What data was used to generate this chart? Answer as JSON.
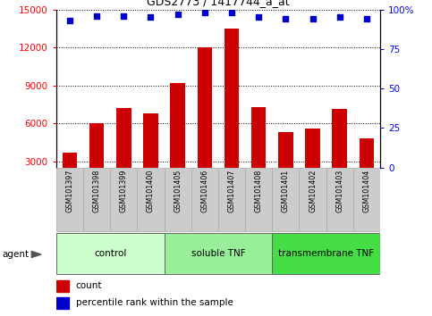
{
  "title": "GDS2773 / 1417744_a_at",
  "samples": [
    "GSM101397",
    "GSM101398",
    "GSM101399",
    "GSM101400",
    "GSM101405",
    "GSM101406",
    "GSM101407",
    "GSM101408",
    "GSM101401",
    "GSM101402",
    "GSM101403",
    "GSM101404"
  ],
  "bar_values": [
    3700,
    6000,
    7200,
    6800,
    9200,
    12000,
    13500,
    7300,
    5300,
    5600,
    7100,
    4800
  ],
  "scatter_values": [
    93,
    96,
    96,
    95,
    97,
    98,
    98,
    95,
    94,
    94,
    95,
    94
  ],
  "groups": [
    {
      "label": "control",
      "start": 0,
      "end": 4,
      "color": "#ccffcc"
    },
    {
      "label": "soluble TNF",
      "start": 4,
      "end": 8,
      "color": "#99ee99"
    },
    {
      "label": "transmembrane TNF",
      "start": 8,
      "end": 12,
      "color": "#44dd44"
    }
  ],
  "ylim_left": [
    2500,
    15000
  ],
  "ylim_right": [
    0,
    100
  ],
  "yticks_left": [
    3000,
    6000,
    9000,
    12000,
    15000
  ],
  "yticks_right": [
    0,
    25,
    50,
    75,
    100
  ],
  "bar_color": "#cc0000",
  "scatter_color": "#0000cc",
  "bar_width": 0.55,
  "agent_label": "agent",
  "legend_bar_label": "count",
  "legend_scatter_label": "percentile rank within the sample",
  "sample_box_color": "#cccccc",
  "sample_box_edge": "#aaaaaa"
}
